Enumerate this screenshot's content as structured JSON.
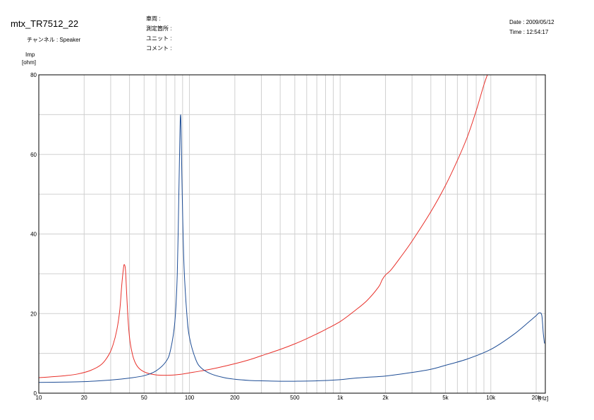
{
  "header": {
    "title": "mtx_TR7512_22",
    "channel": "チャンネル : Speaker",
    "fields": [
      "車両 :",
      "測定箇所 :",
      "ユニット :",
      "コメント :"
    ],
    "date": "Date : 2009/05/12",
    "time": "Time : 12:54:17"
  },
  "chart_data": {
    "type": "line",
    "title": "",
    "ylabel": "Imp",
    "yunit": "[ohm]",
    "xunit": "[Hz]",
    "xscale": "log",
    "xlim": [
      10,
      23000
    ],
    "ylim": [
      0,
      80
    ],
    "grid": true,
    "xticks": [
      10,
      20,
      50,
      100,
      200,
      500,
      1000,
      2000,
      5000,
      10000,
      20000
    ],
    "xtick_labels": [
      "10",
      "20",
      "50",
      "100",
      "200",
      "500",
      "1k",
      "2k",
      "5k",
      "10k",
      "20k"
    ],
    "yticks": [
      0,
      20,
      40,
      60,
      80
    ],
    "series": [
      {
        "color": "#e8302a",
        "points": [
          [
            10,
            3.9
          ],
          [
            12,
            4.1
          ],
          [
            15,
            4.4
          ],
          [
            18,
            4.8
          ],
          [
            22,
            5.7
          ],
          [
            26,
            7.2
          ],
          [
            29,
            9.5
          ],
          [
            31,
            12
          ],
          [
            33,
            16
          ],
          [
            34.5,
            21
          ],
          [
            35.5,
            27
          ],
          [
            36.5,
            31.5
          ],
          [
            37,
            32.3
          ],
          [
            37.6,
            31
          ],
          [
            38.3,
            25
          ],
          [
            39.2,
            18
          ],
          [
            40.3,
            13
          ],
          [
            42,
            9.5
          ],
          [
            44,
            7.4
          ],
          [
            47,
            6
          ],
          [
            52,
            5.1
          ],
          [
            60,
            4.6
          ],
          [
            70,
            4.5
          ],
          [
            80,
            4.6
          ],
          [
            90,
            4.8
          ],
          [
            100,
            5.1
          ],
          [
            120,
            5.6
          ],
          [
            150,
            6.3
          ],
          [
            200,
            7.4
          ],
          [
            250,
            8.4
          ],
          [
            300,
            9.4
          ],
          [
            400,
            11
          ],
          [
            500,
            12.4
          ],
          [
            600,
            13.7
          ],
          [
            700,
            14.9
          ],
          [
            800,
            16
          ],
          [
            1000,
            18
          ],
          [
            1200,
            20.2
          ],
          [
            1500,
            23.2
          ],
          [
            1800,
            26.7
          ],
          [
            1900,
            28.5
          ],
          [
            2000,
            29.7
          ],
          [
            2100,
            30.4
          ],
          [
            2200,
            31.2
          ],
          [
            2500,
            34
          ],
          [
            3000,
            38.2
          ],
          [
            4000,
            45.6
          ],
          [
            5000,
            52.2
          ],
          [
            6000,
            58.5
          ],
          [
            7000,
            64.5
          ],
          [
            8000,
            71
          ],
          [
            9000,
            77.5
          ],
          [
            9700,
            81
          ]
        ]
      },
      {
        "color": "#1f4e96",
        "points": [
          [
            10,
            2.7
          ],
          [
            15,
            2.8
          ],
          [
            20,
            2.9
          ],
          [
            30,
            3.3
          ],
          [
            40,
            3.8
          ],
          [
            50,
            4.4
          ],
          [
            60,
            5.6
          ],
          [
            70,
            8
          ],
          [
            75,
            11
          ],
          [
            80,
            18
          ],
          [
            83,
            30
          ],
          [
            85,
            50
          ],
          [
            86.5,
            66
          ],
          [
            87.3,
            70
          ],
          [
            88,
            66
          ],
          [
            89.5,
            50
          ],
          [
            92,
            32
          ],
          [
            96,
            20
          ],
          [
            100,
            14
          ],
          [
            110,
            8.5
          ],
          [
            120,
            6.3
          ],
          [
            140,
            4.8
          ],
          [
            170,
            3.9
          ],
          [
            200,
            3.5
          ],
          [
            250,
            3.2
          ],
          [
            300,
            3.1
          ],
          [
            400,
            3.0
          ],
          [
            500,
            3.0
          ],
          [
            700,
            3.1
          ],
          [
            1000,
            3.4
          ],
          [
            1200,
            3.7
          ],
          [
            1500,
            4.0
          ],
          [
            2000,
            4.3
          ],
          [
            3000,
            5.2
          ],
          [
            4000,
            6.0
          ],
          [
            5000,
            7.0
          ],
          [
            7000,
            8.6
          ],
          [
            10000,
            11
          ],
          [
            14000,
            14.6
          ],
          [
            18000,
            18
          ],
          [
            20000,
            19.5
          ],
          [
            21000,
            20.2
          ],
          [
            21800,
            19.5
          ],
          [
            22300,
            15
          ],
          [
            22700,
            12.5
          ]
        ]
      }
    ]
  }
}
